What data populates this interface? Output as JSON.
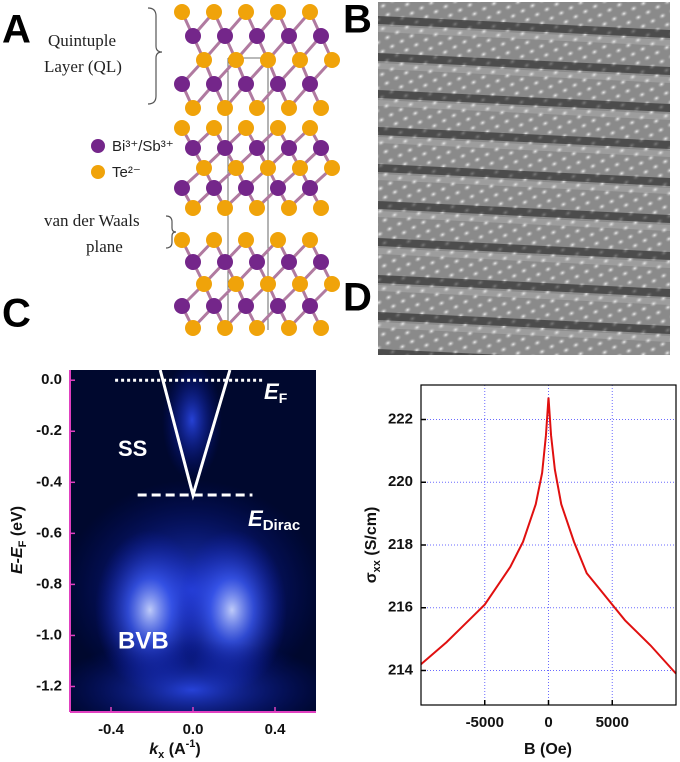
{
  "panel_labels": [
    "A",
    "B",
    "C",
    "D"
  ],
  "crystal": {
    "ql_label": [
      "Quintuple",
      "Layer (QL)"
    ],
    "legend": [
      {
        "label": "Bi³⁺/Sb³⁺",
        "color": "#74268a"
      },
      {
        "label": "Te²⁻",
        "color": "#f0a30a"
      }
    ],
    "vdw_label": [
      "van der Waals",
      "plane"
    ]
  },
  "chart_data": [
    {
      "type": "line",
      "xlabel": [
        "k",
        "x",
        " (A",
        "-1",
        ")"
      ],
      "ylabel": [
        "E-E",
        "F",
        " (eV)"
      ],
      "annotations": {
        "ss": "SS",
        "bvb": "BVB",
        "ef": [
          "E",
          "F"
        ],
        "edirac": [
          "E",
          "Dirac"
        ]
      },
      "series": [
        {
          "color": "#ffffff",
          "line_style": "solid",
          "x": [
            -0.16,
            0.0,
            0.18
          ],
          "values": [
            0.04,
            -0.45,
            0.04
          ]
        },
        {
          "color": "#ffffff",
          "line_style": "dotted",
          "x": [
            -0.38,
            0.34
          ],
          "values": [
            0.0,
            0.0
          ]
        },
        {
          "color": "#ffffff",
          "line_style": "dashed",
          "x": [
            -0.27,
            0.29
          ],
          "values": [
            -0.45,
            -0.45
          ]
        }
      ],
      "xlim": [
        -0.6,
        0.6
      ],
      "ylim": [
        -1.3,
        0.04
      ],
      "xticks": [
        -0.4,
        {
          "value": 0,
          "label": "0.0"
        },
        0.4
      ],
      "yticks": [
        {
          "value": 0,
          "label": "0.0"
        },
        -0.2,
        -0.4,
        -0.6,
        -0.8,
        {
          "value": -1,
          "label": "-1.0"
        },
        -1.2
      ],
      "grid": false,
      "axis_color": "#e040c0"
    },
    {
      "type": "line",
      "xlabel": "B (Oe)",
      "ylabel": [
        "σ",
        "xx",
        " (S/cm)"
      ],
      "x": [
        -10000,
        -8000,
        -6000,
        -5000,
        -4000,
        -3000,
        -2000,
        -1000,
        -500,
        -200,
        0,
        200,
        500,
        1000,
        2000,
        3000,
        4000,
        5000,
        6000,
        8000,
        10000
      ],
      "series": [
        {
          "color": "#e01010",
          "values": [
            214.2,
            214.9,
            215.7,
            216.1,
            216.7,
            217.3,
            218.1,
            219.3,
            220.3,
            221.5,
            222.7,
            221.5,
            220.4,
            219.3,
            218.1,
            217.1,
            216.6,
            216.1,
            215.6,
            214.8,
            213.9
          ]
        }
      ],
      "xlim": [
        -10000,
        10000
      ],
      "ylim": [
        212.9,
        223.1
      ],
      "xticks": [
        -5000,
        0,
        5000
      ],
      "yticks": [
        214,
        216,
        218,
        220,
        222
      ],
      "grid": true,
      "axis_color": "#000000"
    }
  ]
}
